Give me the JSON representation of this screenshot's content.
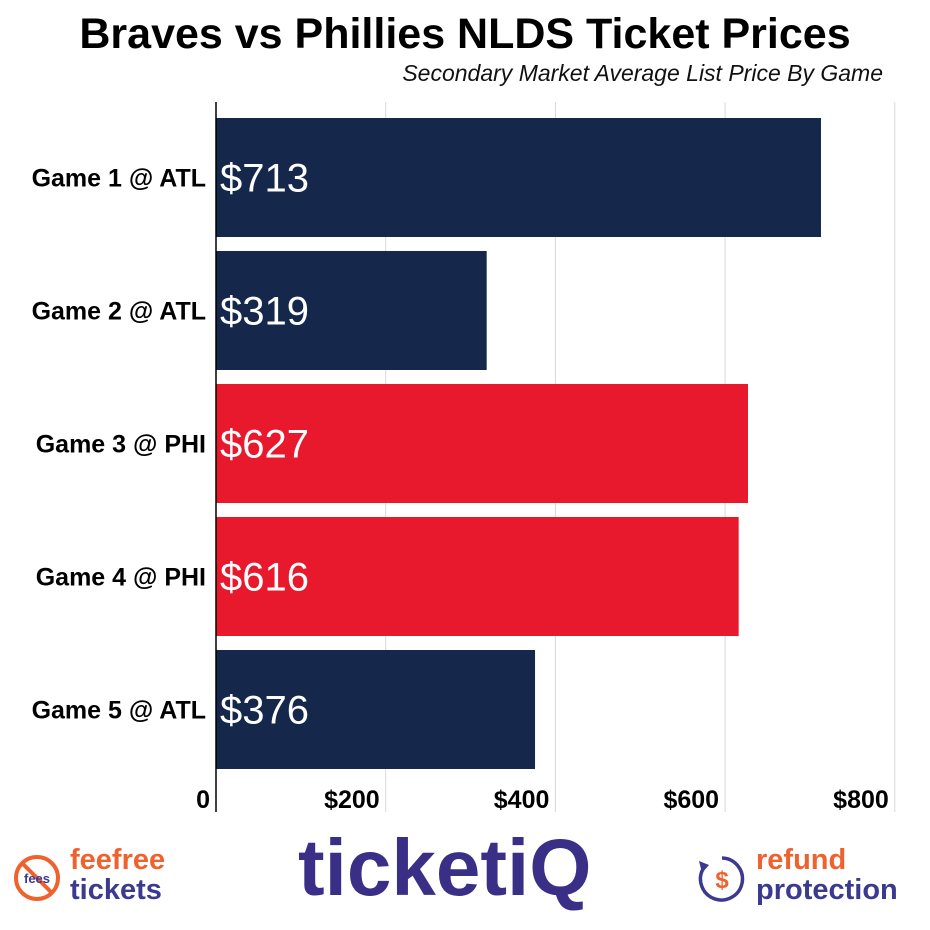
{
  "chart_data": {
    "type": "bar",
    "orientation": "horizontal",
    "title": "Braves vs Phillies NLDS Ticket Prices",
    "subtitle": "Secondary Market Average List Price By Game",
    "categories": [
      "Game 1 @ ATL",
      "Game 2 @ ATL",
      "Game 3 @ PHI",
      "Game 4 @ PHI",
      "Game 5 @ ATL"
    ],
    "values": [
      713,
      319,
      627,
      616,
      376
    ],
    "value_labels": [
      "$713",
      "$319",
      "$627",
      "$616",
      "$376"
    ],
    "bar_colors": [
      "#15284b",
      "#15284b",
      "#e8192c",
      "#e8192c",
      "#15284b"
    ],
    "x_ticks": [
      0,
      200,
      400,
      600,
      800
    ],
    "x_tick_labels": [
      "0",
      "$200",
      "$400",
      "$600",
      "$800"
    ],
    "xlim": [
      0,
      800
    ],
    "grid": "vertical",
    "xlabel": "",
    "ylabel": ""
  },
  "footer": {
    "fee_line1": "feefree",
    "fee_line2": "tickets",
    "fee_icon_text": "fees",
    "brand": "ticketiQ",
    "refund_line1": "refund",
    "refund_line2": "protection",
    "refund_icon_text": "$",
    "colors": {
      "navy": "#3b3a8f",
      "orange": "#f0622d",
      "brand": "#3a2f86"
    }
  }
}
